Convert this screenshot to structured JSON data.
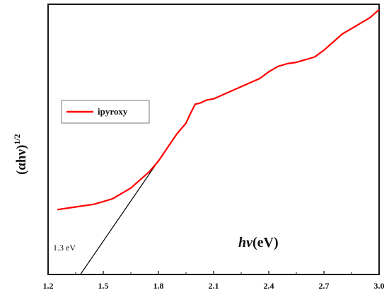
{
  "chart_data": {
    "type": "line",
    "xlabel_italic": "hν",
    "xlabel_unit": "(eV)",
    "ylabel_main": "(αhν)",
    "ylabel_exp": "1/2",
    "xlim": [
      1.2,
      3.0
    ],
    "ylim": [
      0,
      10
    ],
    "xticks": [
      "1.2",
      "1.5",
      "1.8",
      "2.1",
      "2.4",
      "2.7",
      "3.0"
    ],
    "yticks_shown": false,
    "grid": false,
    "legend_position": "upper-left",
    "series": [
      {
        "name": "ipyroxy",
        "color": "#ff0000",
        "x": [
          1.25,
          1.35,
          1.45,
          1.5,
          1.55,
          1.6,
          1.65,
          1.7,
          1.75,
          1.8,
          1.85,
          1.9,
          1.95,
          1.97,
          2.0,
          2.03,
          2.06,
          2.1,
          2.15,
          2.2,
          2.25,
          2.3,
          2.35,
          2.4,
          2.45,
          2.5,
          2.55,
          2.6,
          2.65,
          2.7,
          2.75,
          2.8,
          2.85,
          2.9,
          2.95,
          3.0
        ],
        "y": [
          2.4,
          2.5,
          2.6,
          2.7,
          2.8,
          3.0,
          3.2,
          3.5,
          3.8,
          4.2,
          4.7,
          5.2,
          5.6,
          5.9,
          6.3,
          6.35,
          6.45,
          6.5,
          6.65,
          6.8,
          6.95,
          7.1,
          7.25,
          7.5,
          7.7,
          7.8,
          7.85,
          7.95,
          8.05,
          8.3,
          8.6,
          8.9,
          9.1,
          9.3,
          9.5,
          9.8
        ]
      }
    ],
    "tangent_line": {
      "x": [
        1.3,
        1.9
      ],
      "y": [
        -0.75,
        5.2
      ]
    },
    "annotation": "1.3 eV"
  }
}
